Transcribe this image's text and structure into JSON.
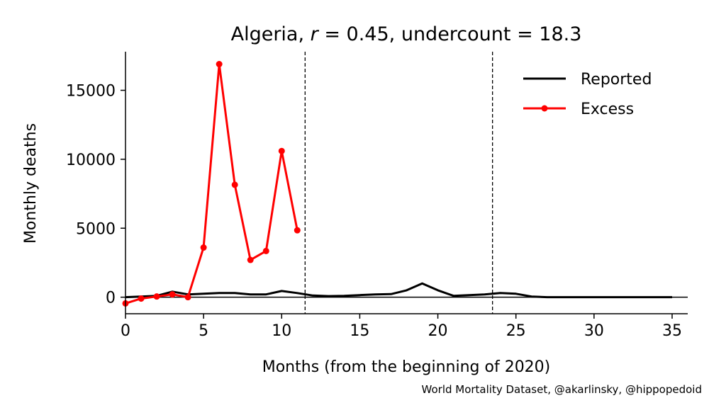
{
  "chart_data": {
    "type": "line",
    "title": {
      "country": "Algeria",
      "r_symbol": "r",
      "r_text": " = 0.45, ",
      "undercount_text": "undercount = 18.3"
    },
    "xlabel": "Months (from the beginning of 2020)",
    "ylabel": "Monthly deaths",
    "xlim": [
      0,
      36
    ],
    "ylim": [
      -1200,
      17800
    ],
    "xticks": [
      0,
      5,
      10,
      15,
      20,
      25,
      30,
      35
    ],
    "xtick_labels": [
      "0",
      "5",
      "10",
      "15",
      "20",
      "25",
      "30",
      "35"
    ],
    "yticks": [
      0,
      5000,
      10000,
      15000
    ],
    "ytick_labels": [
      "0",
      "5000",
      "10000",
      "15000"
    ],
    "vlines": [
      11.5,
      23.5
    ],
    "hline": 0,
    "grid": false,
    "legend_position": "top-right",
    "series": [
      {
        "name": "Reported",
        "color": "#000000",
        "markers": false,
        "x": [
          0,
          1,
          2,
          3,
          4,
          5,
          6,
          7,
          8,
          9,
          10,
          11,
          12,
          13,
          14,
          15,
          16,
          17,
          18,
          19,
          20,
          21,
          22,
          23,
          24,
          25,
          26,
          27,
          28,
          29,
          30,
          31,
          32,
          33,
          34,
          35
        ],
        "y": [
          0,
          50,
          100,
          400,
          200,
          250,
          300,
          300,
          200,
          200,
          450,
          300,
          120,
          80,
          100,
          150,
          200,
          220,
          500,
          1000,
          500,
          100,
          150,
          200,
          300,
          250,
          50,
          0,
          0,
          0,
          0,
          0,
          0,
          0,
          0,
          0
        ]
      },
      {
        "name": "Excess",
        "color": "#ff0000",
        "markers": true,
        "x": [
          0,
          1,
          2,
          3,
          4,
          5,
          6,
          7,
          8,
          9,
          10,
          11
        ],
        "y": [
          -450,
          -100,
          50,
          200,
          0,
          3600,
          16900,
          8150,
          2700,
          3350,
          10600,
          4850
        ]
      }
    ]
  },
  "credit": "World Mortality Dataset, @akarlinsky, @hippopedoid"
}
